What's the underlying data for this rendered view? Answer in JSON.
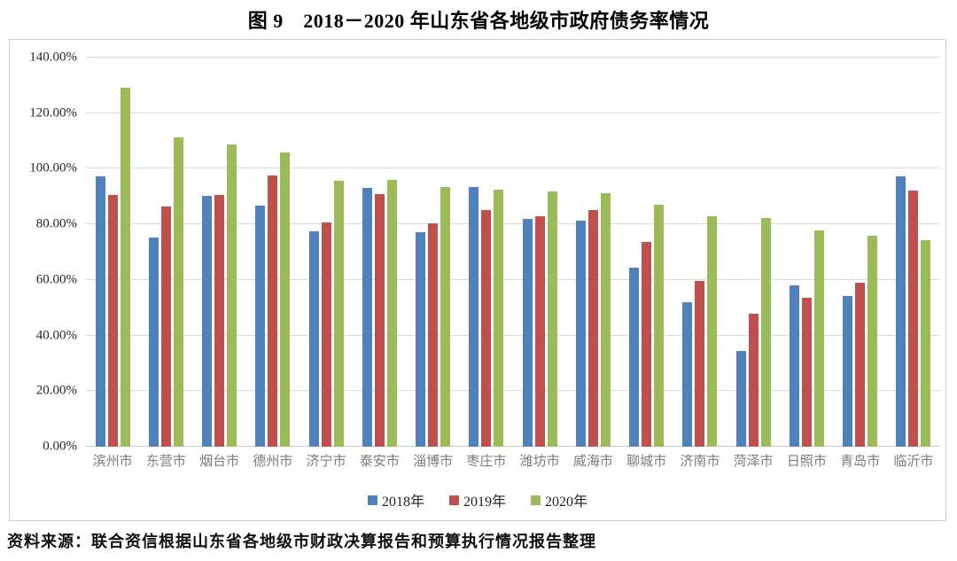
{
  "title": "图 9　2018－2020 年山东省各地级市政府债务率情况",
  "source": "资料来源：联合资信根据山东省各地级市财政决算报告和预算执行情况报告整理",
  "colors": {
    "series_2018": "#4F81BD",
    "series_2019": "#C0504D",
    "series_2020": "#9BBB59",
    "grid": "#DCDCDC",
    "axis_text": "#262626",
    "category_text": "#7B7B7B"
  },
  "chart_data": {
    "type": "bar",
    "title": "图 9　2018－2020 年山东省各地级市政府债务率情况",
    "xlabel": "",
    "ylabel": "",
    "ylim": [
      0,
      140
    ],
    "ytick_step": 20,
    "yticks": [
      "0.00%",
      "20.00%",
      "40.00%",
      "60.00%",
      "80.00%",
      "100.00%",
      "120.00%",
      "140.00%"
    ],
    "grid": true,
    "legend_position": "bottom",
    "categories": [
      "滨州市",
      "东营市",
      "烟台市",
      "德州市",
      "济宁市",
      "泰安市",
      "淄博市",
      "枣庄市",
      "潍坊市",
      "威海市",
      "聊城市",
      "济南市",
      "菏泽市",
      "日照市",
      "青岛市",
      "临沂市"
    ],
    "series": [
      {
        "name": "2018年",
        "color": "#4F81BD",
        "values": [
          97.4,
          75.2,
          90.3,
          86.8,
          77.4,
          93.2,
          77.1,
          93.6,
          82.0,
          81.2,
          64.5,
          52.0,
          34.5,
          58.0,
          54.3,
          97.3
        ]
      },
      {
        "name": "2019年",
        "color": "#C0504D",
        "values": [
          90.5,
          86.5,
          90.7,
          97.6,
          80.6,
          90.9,
          80.5,
          85.3,
          83.0,
          85.0,
          73.8,
          59.7,
          48.0,
          53.7,
          59.0,
          92.2
        ]
      },
      {
        "name": "2020年",
        "color": "#9BBB59",
        "values": [
          129.3,
          111.2,
          108.8,
          105.9,
          95.8,
          95.9,
          93.3,
          92.6,
          91.8,
          91.2,
          87.0,
          83.0,
          82.3,
          77.7,
          75.8,
          74.2
        ]
      }
    ]
  }
}
